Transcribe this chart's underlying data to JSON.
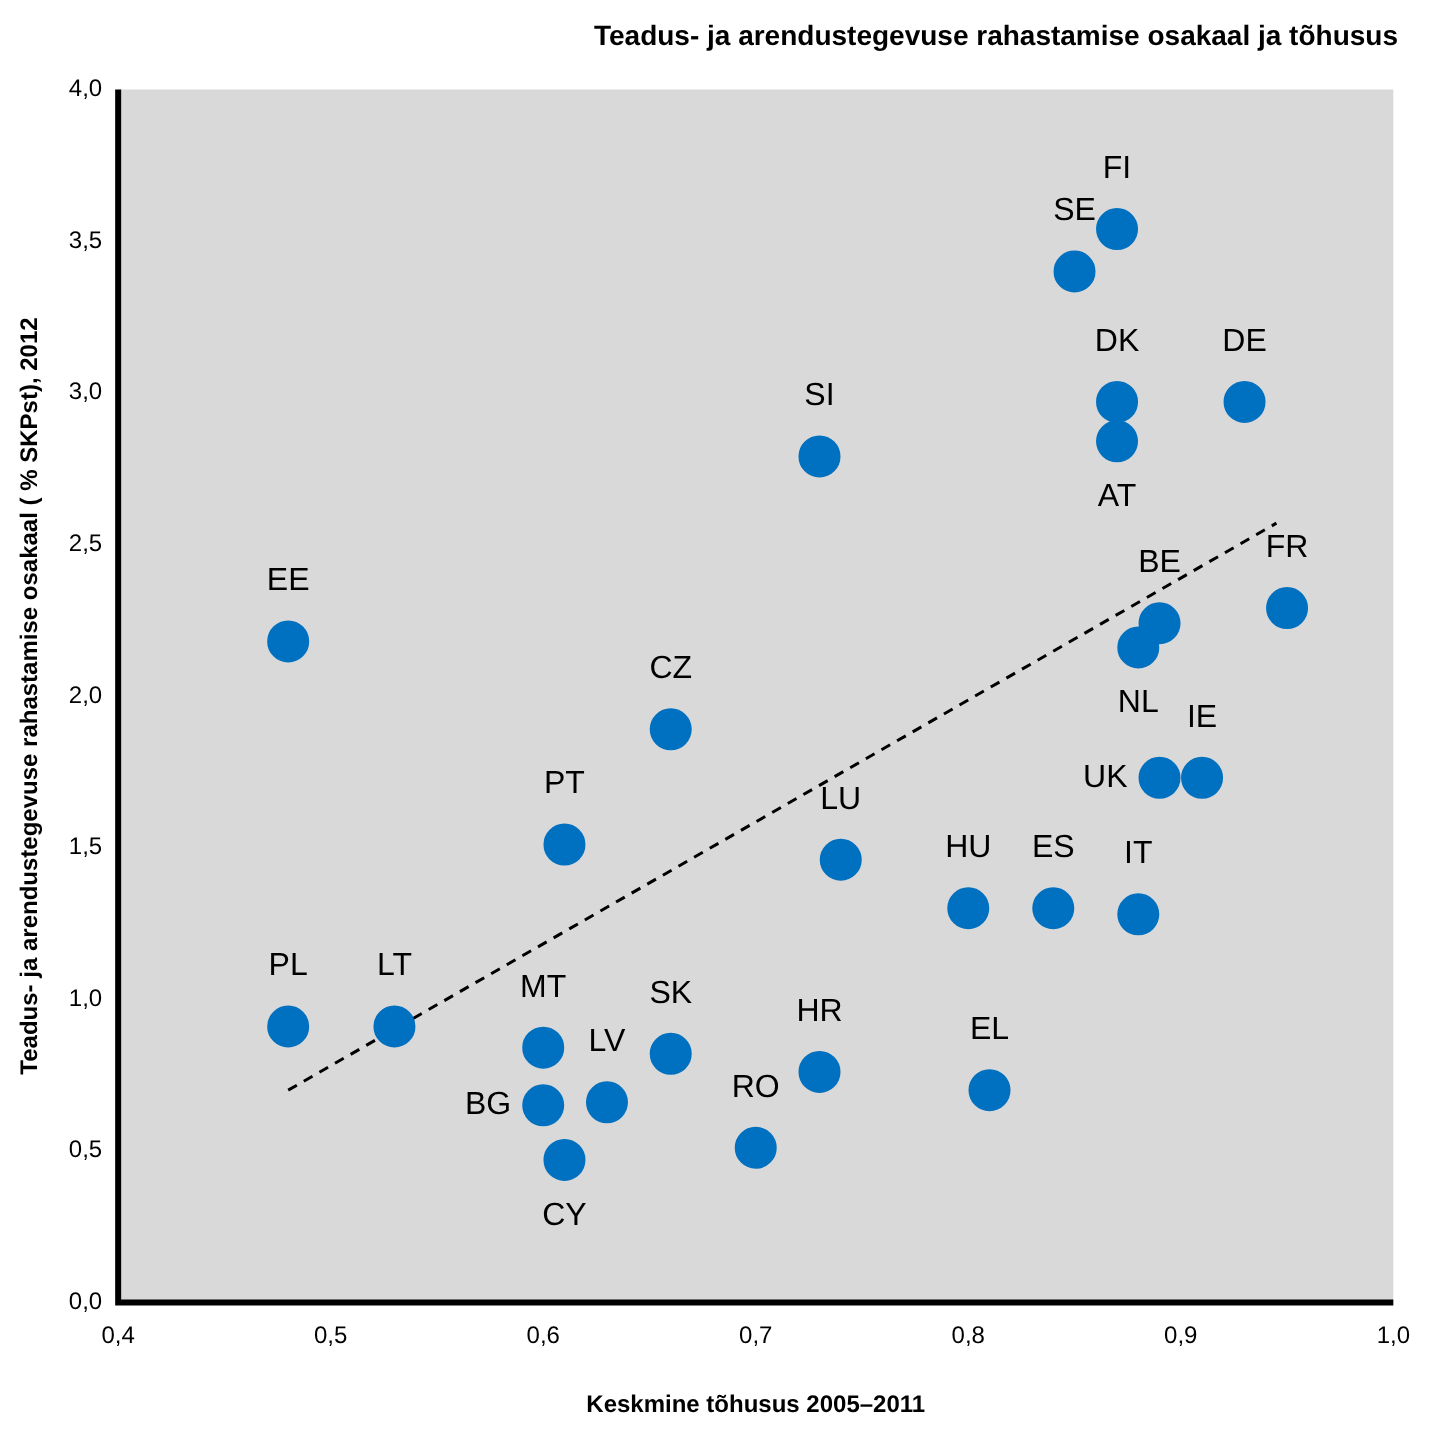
{
  "chart_data": {
    "type": "scatter",
    "title": "Teadus- ja arendustegevuse rahastamise osakaal ja tõhusus",
    "xlabel": "Keskmine tõhusus 2005–2011",
    "ylabel": "Teadus- ja arendustegevuse rahastamise osakaal ( % SKPst), 2012",
    "xlim": [
      0.4,
      1.0
    ],
    "xticks": [
      {
        "value": 0.4,
        "label": "0,4"
      },
      {
        "value": 0.5,
        "label": "0,5"
      },
      {
        "value": 0.6,
        "label": "0,6"
      },
      {
        "value": 0.7,
        "label": "0,7"
      },
      {
        "value": 0.8,
        "label": "0,8"
      },
      {
        "value": 0.9,
        "label": "0,9"
      },
      {
        "value": 1.0,
        "label": "1,0"
      }
    ],
    "ylim": [
      0,
      4
    ],
    "yticks": [
      {
        "value": 0,
        "label": "0,0"
      },
      {
        "value": 0.5,
        "label": "0,5"
      },
      {
        "value": 1,
        "label": "1,0"
      },
      {
        "value": 1.5,
        "label": "1,5"
      },
      {
        "value": 2,
        "label": "2,0"
      },
      {
        "value": 2.5,
        "label": "2,5"
      },
      {
        "value": 3,
        "label": "3,0"
      },
      {
        "value": 3.5,
        "label": "3,5"
      },
      {
        "value": 4,
        "label": "4,0"
      }
    ],
    "grid": false,
    "legend": false,
    "series": [
      {
        "color": "#0070c0",
        "marker": "circle",
        "x": [
          0.48,
          0.48,
          0.53,
          0.6,
          0.6,
          0.61,
          0.63,
          0.66,
          0.61,
          0.66,
          0.73,
          0.74,
          0.7,
          0.73,
          0.8,
          0.81,
          0.84,
          0.88,
          0.85,
          0.87,
          0.87,
          0.87,
          0.93,
          0.89,
          0.88,
          0.95,
          0.89,
          0.91
        ],
        "values": [
          2.18,
          0.91,
          0.91,
          0.84,
          0.65,
          0.47,
          0.66,
          0.82,
          1.51,
          1.89,
          2.79,
          1.46,
          0.51,
          0.76,
          1.3,
          0.7,
          1.3,
          1.28,
          3.4,
          3.54,
          2.97,
          2.84,
          2.97,
          2.24,
          2.16,
          2.29,
          1.73,
          1.73
        ],
        "value_labels": [
          "EE",
          "PL",
          "LT",
          "MT",
          "BG",
          "CY",
          "LV",
          "SK",
          "PT",
          "CZ",
          "SI",
          "LU",
          "RO",
          "HR",
          "HU",
          "EL",
          "ES",
          "IT",
          "SE",
          "FI",
          "DK",
          "AT",
          "DE",
          "BE",
          "NL",
          "FR",
          "UK",
          "IE"
        ]
      },
      {
        "type": "line",
        "color": "#000000",
        "marker": "none",
        "line_style": "dashed",
        "x": [
          0.48,
          0.945
        ],
        "values": [
          0.7,
          2.57
        ]
      }
    ]
  }
}
